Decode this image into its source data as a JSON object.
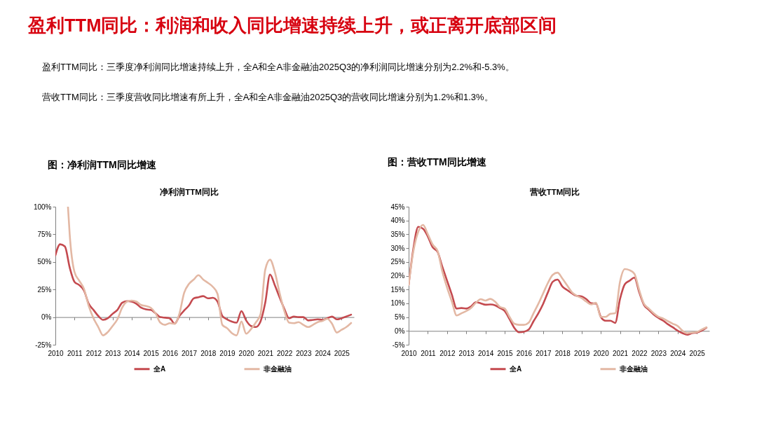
{
  "chart_data": [
    {
      "type": "other",
      "title": "盈利TTM同比：利润和收入同比增速持续上升，或正离开底部区间",
      "annotations": [
        "盈利TTM同比：三季度净利润同比增速持续上升，全A和全A非金融油2025Q3的净利润同比增速分别为2.2%和-5.3%。",
        "营收TTM同比：三季度营收同比增速有所上升，全A和全A非金融油2025Q3的营收同比增速分别为1.2%和1.3%。"
      ]
    },
    {
      "type": "line",
      "title": "图：净利润TTM同比增速",
      "subtitle": "净利润TTM同比",
      "x": [
        2010,
        2010.25,
        2010.5,
        2010.75,
        2011,
        2011.25,
        2011.5,
        2011.75,
        2012,
        2012.25,
        2012.5,
        2012.75,
        2013,
        2013.25,
        2013.5,
        2013.75,
        2014,
        2014.25,
        2014.5,
        2014.75,
        2015,
        2015.25,
        2015.5,
        2015.75,
        2016,
        2016.25,
        2016.5,
        2016.75,
        2017,
        2017.25,
        2017.5,
        2017.75,
        2018,
        2018.25,
        2018.5,
        2018.75,
        2019,
        2019.25,
        2019.5,
        2019.75,
        2020,
        2020.25,
        2020.5,
        2020.75,
        2021,
        2021.25,
        2021.5,
        2021.75,
        2022,
        2022.25,
        2022.5,
        2022.75,
        2023,
        2023.25,
        2023.5,
        2023.75,
        2024,
        2024.25,
        2024.5,
        2024.75,
        2025,
        2025.25,
        2025.5
      ],
      "series": [
        {
          "name": "全A",
          "color": "#c44a4f",
          "values": [
            56,
            66,
            64,
            45,
            32,
            29,
            24,
            12,
            6.5,
            1,
            -2.5,
            -1,
            3,
            6.5,
            13,
            14.5,
            14,
            12,
            8.5,
            7,
            6.5,
            3.5,
            0,
            -0.5,
            -1,
            -6,
            1,
            6,
            10.5,
            17,
            18,
            19,
            17,
            17.5,
            14,
            1,
            -2,
            -4,
            -5,
            5.5,
            -3,
            -8,
            -9,
            -4,
            13,
            38.5,
            29,
            18,
            7.5,
            -1,
            0.5,
            0,
            0,
            -3,
            -2.5,
            -2,
            -2.5,
            -1,
            0.5,
            -2,
            -1,
            0.5,
            2.2
          ]
        },
        {
          "name": "非金融油",
          "color": "#e3b8a4",
          "x": [
            2010.66,
            2010.75,
            2011,
            2011.25,
            2011.5,
            2011.75,
            2012,
            2012.25,
            2012.5,
            2012.75,
            2013,
            2013.25,
            2013.5,
            2013.75,
            2014,
            2014.25,
            2014.5,
            2014.75,
            2015,
            2015.25,
            2015.5,
            2015.75,
            2016,
            2016.25,
            2016.5,
            2016.75,
            2017,
            2017.25,
            2017.5,
            2017.75,
            2018,
            2018.25,
            2018.5,
            2018.75,
            2019,
            2019.25,
            2019.5,
            2019.75,
            2020,
            2020.25,
            2020.5,
            2020.75,
            2021,
            2021.25,
            2021.5,
            2021.75,
            2022,
            2022.25,
            2022.5,
            2022.75,
            2023,
            2023.25,
            2023.5,
            2023.75,
            2024,
            2024.25,
            2024.5,
            2024.75,
            2025,
            2025.25,
            2025.5
          ],
          "values": [
            100,
            75,
            41,
            33,
            25.5,
            10,
            -1,
            -9,
            -16.5,
            -13.5,
            -8,
            -2,
            8.5,
            14,
            15,
            14,
            11,
            10,
            8.5,
            3.5,
            -5,
            -7,
            -5.5,
            -6,
            3,
            22,
            30,
            34,
            38,
            34,
            31,
            27.5,
            21,
            -7,
            -10,
            -14.5,
            -16.5,
            -4,
            -15,
            -11,
            -5,
            2.5,
            43,
            52,
            41,
            22,
            5.5,
            -5,
            -5.5,
            -4.5,
            -7,
            -9,
            -7,
            -4.5,
            -3.5,
            -1.5,
            -6,
            -14,
            -11.5,
            -9,
            -5.3
          ]
        }
      ],
      "xlim": [
        2010,
        2025.65
      ],
      "xticks": [
        2010,
        2011,
        2012,
        2013,
        2014,
        2015,
        2016,
        2017,
        2018,
        2019,
        2020,
        2021,
        2022,
        2023,
        2024,
        2025
      ],
      "ylim": [
        -25,
        100
      ],
      "yticks": [
        {
          "value": -25,
          "label": "-25%"
        },
        {
          "value": 0,
          "label": "0%"
        },
        {
          "value": 25,
          "label": "25%"
        },
        {
          "value": 50,
          "label": "50%"
        },
        {
          "value": 75,
          "label": "75%"
        },
        {
          "value": 100,
          "label": "100%"
        }
      ],
      "legend": "bottom"
    },
    {
      "type": "line",
      "title": "图：营收TTM同比增速",
      "subtitle": "营收TTM同比",
      "x": [
        2010,
        2010.25,
        2010.5,
        2010.75,
        2011,
        2011.25,
        2011.5,
        2011.75,
        2012,
        2012.25,
        2012.5,
        2012.75,
        2013,
        2013.25,
        2013.5,
        2013.75,
        2014,
        2014.25,
        2014.5,
        2014.75,
        2015,
        2015.25,
        2015.5,
        2015.75,
        2016,
        2016.25,
        2016.5,
        2016.75,
        2017,
        2017.25,
        2017.5,
        2017.75,
        2018,
        2018.25,
        2018.5,
        2018.75,
        2019,
        2019.25,
        2019.5,
        2019.75,
        2020,
        2020.25,
        2020.5,
        2020.75,
        2021,
        2021.25,
        2021.5,
        2021.75,
        2022,
        2022.25,
        2022.5,
        2022.75,
        2023,
        2023.25,
        2023.5,
        2023.75,
        2024,
        2024.25,
        2024.5,
        2024.75,
        2025,
        2025.25,
        2025.5
      ],
      "series": [
        {
          "name": "全A",
          "color": "#c44a4f",
          "values": [
            16.7,
            30,
            37.7,
            37,
            34.2,
            30.3,
            28.7,
            23.3,
            18.2,
            13.1,
            8.1,
            8.3,
            8.1,
            8.9,
            10.4,
            10,
            9.5,
            9.6,
            9.3,
            8.3,
            7.2,
            4.3,
            1.1,
            -0.5,
            -0.3,
            0.5,
            3.5,
            6.4,
            9.8,
            14,
            17.8,
            18.6,
            16.1,
            14.8,
            13.6,
            12.7,
            12.5,
            11.5,
            10,
            9.9,
            5.1,
            3.7,
            3.7,
            2.9,
            11.5,
            16.9,
            18.2,
            19.3,
            14,
            9.4,
            7.7,
            6,
            4.7,
            3.7,
            2.4,
            1.3,
            0.1,
            -0.8,
            -1.4,
            -0.8,
            -0.6,
            0.1,
            1.2
          ]
        },
        {
          "name": "非金融油",
          "color": "#e3b8a4",
          "values": [
            16.7,
            29,
            35.9,
            38.4,
            35,
            31.3,
            29.1,
            21.6,
            15.7,
            10.6,
            5.6,
            6.4,
            7.2,
            8.3,
            10.2,
            11.5,
            11,
            11.6,
            10.6,
            8.7,
            8.1,
            5.1,
            2.6,
            2.2,
            2.2,
            3,
            6.4,
            9.8,
            13.6,
            17.4,
            20.3,
            21.1,
            19,
            16.5,
            14,
            12.7,
            11.9,
            10.6,
            9.6,
            10.2,
            5.1,
            5.1,
            6.2,
            6.4,
            17.8,
            22.4,
            22,
            20.7,
            14.8,
            9.8,
            8.1,
            6.4,
            5.1,
            4.5,
            3.5,
            2.6,
            1.8,
            0.1,
            -0.8,
            -0.6,
            -0.4,
            0.5,
            1.3
          ]
        }
      ],
      "xlim": [
        2010,
        2025.65
      ],
      "xticks": [
        2010,
        2011,
        2012,
        2013,
        2014,
        2015,
        2016,
        2017,
        2018,
        2019,
        2020,
        2021,
        2022,
        2023,
        2024,
        2025
      ],
      "ylim": [
        -5,
        45
      ],
      "yticks": [
        {
          "value": -5,
          "label": "-5%"
        },
        {
          "value": 0,
          "label": "0%"
        },
        {
          "value": 5,
          "label": "5%"
        },
        {
          "value": 10,
          "label": "10%"
        },
        {
          "value": 15,
          "label": "15%"
        },
        {
          "value": 20,
          "label": "20%"
        },
        {
          "value": 25,
          "label": "25%"
        },
        {
          "value": 30,
          "label": "30%"
        },
        {
          "value": 35,
          "label": "35%"
        },
        {
          "value": 40,
          "label": "40%"
        },
        {
          "value": 45,
          "label": "45%"
        }
      ],
      "legend": "bottom"
    }
  ]
}
